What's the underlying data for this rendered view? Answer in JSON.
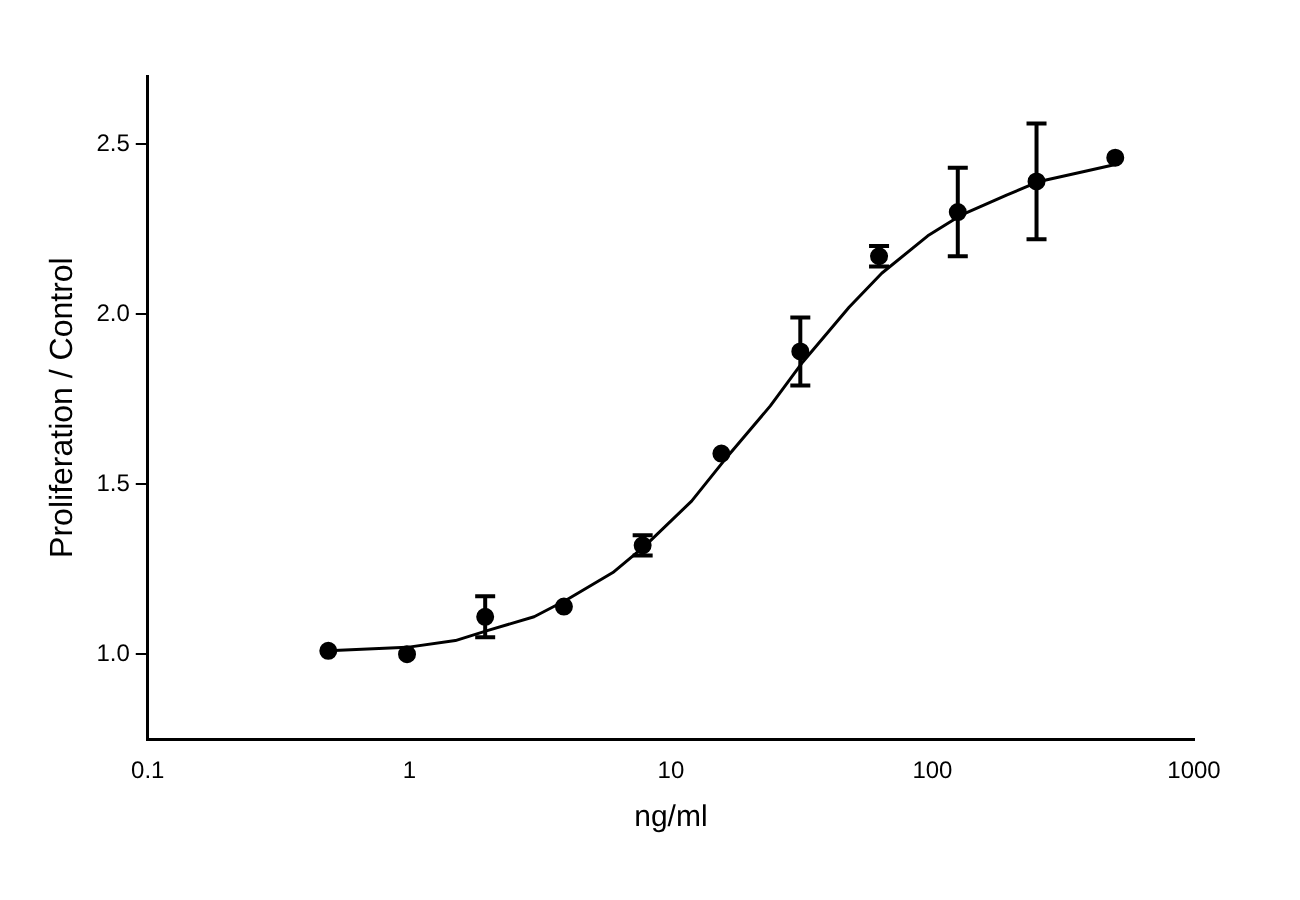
{
  "chart_data": {
    "type": "scatter",
    "xlabel": "ng/ml",
    "ylabel": "Proliferation / Control",
    "log": "x",
    "xlim": [
      0.1,
      1000
    ],
    "xticks": [
      0.1,
      1,
      10,
      100,
      1000
    ],
    "ylim": [
      0.75,
      2.7
    ],
    "yticks": [
      {
        "value": 1,
        "label": "1.0"
      },
      {
        "value": 1.5,
        "label": "1.5"
      },
      {
        "value": 2,
        "label": "2.0"
      },
      {
        "value": 2.5,
        "label": "2.5"
      }
    ],
    "grid": false,
    "legend": false,
    "series": [
      {
        "color": "#000000",
        "marker": "circle",
        "x": [
          0.49,
          0.98,
          1.95,
          3.9,
          7.8,
          15.6,
          31.25,
          62.5,
          125,
          250,
          500
        ],
        "values": [
          1.01,
          1.0,
          1.11,
          1.14,
          1.32,
          1.59,
          1.89,
          2.17,
          2.3,
          2.39,
          2.46
        ],
        "errors": [
          null,
          null,
          0.06,
          null,
          0.03,
          null,
          0.1,
          0.03,
          0.13,
          0.17,
          null
        ]
      },
      {
        "type": "line",
        "color": "#000000",
        "marker": "none",
        "line_style": "solid",
        "x": [
          0.49,
          0.98,
          1.5,
          2,
          3,
          4,
          6,
          8,
          12,
          16,
          24,
          32,
          48,
          64,
          96,
          128,
          192,
          256,
          384,
          500
        ],
        "values": [
          1.01,
          1.02,
          1.04,
          1.07,
          1.11,
          1.16,
          1.24,
          1.32,
          1.45,
          1.57,
          1.73,
          1.86,
          2.02,
          2.12,
          2.23,
          2.29,
          2.35,
          2.39,
          2.42,
          2.44
        ]
      }
    ]
  }
}
